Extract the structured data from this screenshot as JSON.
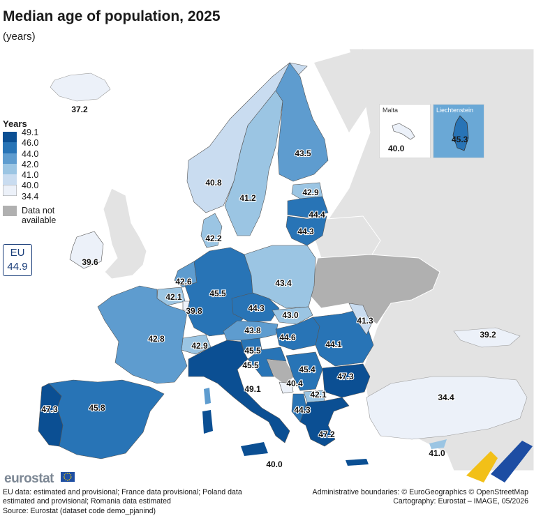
{
  "title": "Median age of population, 2025",
  "subtitle": "(years)",
  "legend": {
    "title": "Years",
    "breaks": [
      "49.1",
      "46.0",
      "44.0",
      "42.0",
      "41.0",
      "40.0",
      "34.4"
    ],
    "colors": [
      "#0b4f93",
      "#2874b6",
      "#5e9ccf",
      "#9bc5e3",
      "#c9dcf0",
      "#ecf1f9"
    ],
    "not_available_label": "Data not available",
    "not_available_color": "#b0b0b0"
  },
  "eu_summary": {
    "label": "EU",
    "value": "44.9"
  },
  "regions": [
    {
      "name": "Iceland",
      "value": "37.2"
    },
    {
      "name": "Norway",
      "value": "40.8"
    },
    {
      "name": "Sweden",
      "value": "41.2"
    },
    {
      "name": "Finland",
      "value": "43.5"
    },
    {
      "name": "Estonia",
      "value": "42.9"
    },
    {
      "name": "Latvia",
      "value": "44.4"
    },
    {
      "name": "Lithuania",
      "value": "44.3"
    },
    {
      "name": "Denmark",
      "value": "42.2"
    },
    {
      "name": "Ireland",
      "value": "39.6"
    },
    {
      "name": "Netherlands",
      "value": "42.6"
    },
    {
      "name": "Belgium",
      "value": "42.1"
    },
    {
      "name": "Luxembourg",
      "value": "39.8"
    },
    {
      "name": "Germany",
      "value": "45.5"
    },
    {
      "name": "Poland",
      "value": "43.4"
    },
    {
      "name": "Czechia",
      "value": "44.3"
    },
    {
      "name": "Slovakia",
      "value": "43.0"
    },
    {
      "name": "Austria",
      "value": "43.8"
    },
    {
      "name": "Switzerland",
      "value": "42.9"
    },
    {
      "name": "Liechtenstein",
      "value": "45.3"
    },
    {
      "name": "France",
      "value": "42.8"
    },
    {
      "name": "Hungary",
      "value": "44.6"
    },
    {
      "name": "Slovenia",
      "value": "45.5"
    },
    {
      "name": "Croatia",
      "value": "45.5"
    },
    {
      "name": "Romania",
      "value": "44.1"
    },
    {
      "name": "Moldova",
      "value": "41.3"
    },
    {
      "name": "Serbia",
      "value": "45.4"
    },
    {
      "name": "Montenegro",
      "value": "40.4"
    },
    {
      "name": "North Macedonia",
      "value": "42.1"
    },
    {
      "name": "Albania",
      "value": "44.3"
    },
    {
      "name": "Bulgaria",
      "value": "47.3"
    },
    {
      "name": "Greece",
      "value": "47.2"
    },
    {
      "name": "Italy",
      "value": "49.1"
    },
    {
      "name": "Malta",
      "value": "40.0"
    },
    {
      "name": "Portugal",
      "value": "47.3"
    },
    {
      "name": "Spain",
      "value": "45.8"
    },
    {
      "name": "Georgia",
      "value": "39.2"
    },
    {
      "name": "Türkiye",
      "value": "34.4"
    },
    {
      "name": "Cyprus",
      "value": "41.0"
    }
  ],
  "insets": {
    "malta_label": "Malta",
    "liechtenstein_label": "Liechtenstein"
  },
  "footer": {
    "logo": "eurostat",
    "notes": "EU data: estimated and provisional; France data provisional; Poland data estimated and provisional; Romania data estimated",
    "source": "Source: Eurostat (dataset code demo_pjanind)",
    "credits_line1": "Administrative boundaries: © EuroGeographics © OpenStreetMap",
    "credits_line2": "Cartography: Eurostat – IMAGE, 05/2026"
  }
}
